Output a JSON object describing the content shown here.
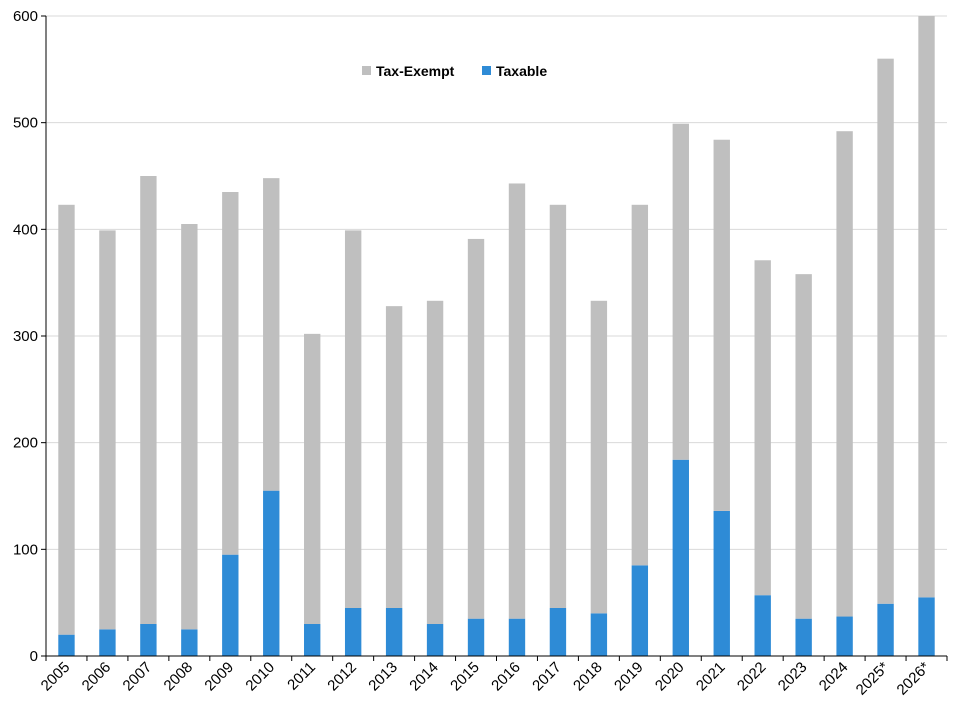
{
  "chart_data": {
    "type": "bar",
    "stacked": true,
    "categories": [
      "2005",
      "2006",
      "2007",
      "2008",
      "2009",
      "2010",
      "2011",
      "2012",
      "2013",
      "2014",
      "2015",
      "2016",
      "2017",
      "2018",
      "2019",
      "2020",
      "2021",
      "2022",
      "2023",
      "2024",
      "2025*",
      "2026*"
    ],
    "series": [
      {
        "name": "Taxable",
        "color": "#2e8bd6",
        "values": [
          20,
          25,
          30,
          25,
          95,
          155,
          30,
          45,
          45,
          30,
          35,
          35,
          45,
          40,
          85,
          184,
          136,
          57,
          35,
          37,
          49,
          55
        ]
      },
      {
        "name": "Tax-Exempt",
        "color": "#bfbfbf",
        "values": [
          403,
          374,
          420,
          380,
          340,
          293,
          272,
          354,
          283,
          303,
          356,
          408,
          378,
          293,
          338,
          315,
          348,
          314,
          323,
          455,
          511,
          545
        ]
      }
    ],
    "legend_order": [
      "Tax-Exempt",
      "Taxable"
    ],
    "legend_position": "top-center",
    "ylim": [
      0,
      600
    ],
    "yticks": [
      0,
      100,
      200,
      300,
      400,
      500,
      600
    ],
    "grid": true,
    "title": "",
    "xlabel": "",
    "ylabel": ""
  }
}
